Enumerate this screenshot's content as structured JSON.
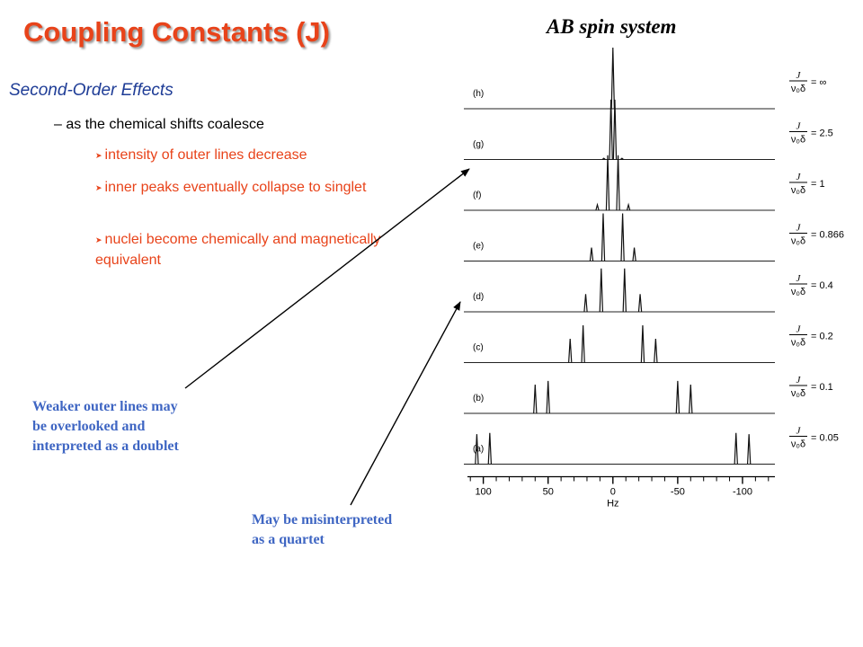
{
  "title": "Coupling Constants (J)",
  "figure_label": "AB spin system",
  "section": {
    "heading": "Second-Order Effects",
    "bullet": "– as the chemical shifts coalesce",
    "sub_bullets": [
      "intensity of outer lines decrease",
      "inner peaks eventually collapse to singlet",
      "nuclei become chemically and magnetically equivalent"
    ]
  },
  "annotations": {
    "doublet_note": [
      "Weaker outer lines may",
      "be overlooked and",
      "interpreted as a doublet"
    ],
    "quartet_note": [
      "May be misinterpreted",
      "as a quartet"
    ]
  },
  "chart_data": {
    "type": "line",
    "xlabel": "Hz",
    "x_ticks": [
      100,
      50,
      0,
      -50,
      -100
    ],
    "xlim": [
      115,
      -125
    ],
    "ratio_label": "J / ν₀δ",
    "series": [
      {
        "name": "(h)",
        "ratio": "= ∞",
        "lines": [
          [
            0,
            1.0
          ]
        ]
      },
      {
        "name": "(g)",
        "ratio": "= 2.5",
        "lines": [
          [
            7,
            0.02
          ],
          [
            1.5,
            0.98
          ],
          [
            -1.5,
            0.98
          ],
          [
            -7,
            0.02
          ]
        ]
      },
      {
        "name": "(f)",
        "ratio": "= 1",
        "lines": [
          [
            12,
            0.09
          ],
          [
            4,
            0.9
          ],
          [
            -4,
            0.9
          ],
          [
            -12,
            0.09
          ]
        ]
      },
      {
        "name": "(e)",
        "ratio": "= 0.866",
        "lines": [
          [
            16.5,
            0.22
          ],
          [
            7.5,
            0.78
          ],
          [
            -7.5,
            0.78
          ],
          [
            -16.5,
            0.22
          ]
        ]
      },
      {
        "name": "(d)",
        "ratio": "= 0.4",
        "lines": [
          [
            21,
            0.29
          ],
          [
            9,
            0.71
          ],
          [
            -9,
            0.71
          ],
          [
            -21,
            0.29
          ]
        ]
      },
      {
        "name": "(c)",
        "ratio": "= 0.2",
        "lines": [
          [
            33,
            0.39
          ],
          [
            23,
            0.61
          ],
          [
            -23,
            0.61
          ],
          [
            -33,
            0.39
          ]
        ]
      },
      {
        "name": "(b)",
        "ratio": "= 0.1",
        "lines": [
          [
            60,
            0.47
          ],
          [
            50,
            0.53
          ],
          [
            -50,
            0.53
          ],
          [
            -60,
            0.47
          ]
        ]
      },
      {
        "name": "(a)",
        "ratio": "= 0.05",
        "lines": [
          [
            105,
            0.49
          ],
          [
            95,
            0.51
          ],
          [
            -95,
            0.51
          ],
          [
            -105,
            0.49
          ]
        ]
      }
    ]
  },
  "colors": {
    "title": "#e8431a",
    "heading": "#1e3c96",
    "note": "#3f66c3",
    "text": "#000000"
  }
}
